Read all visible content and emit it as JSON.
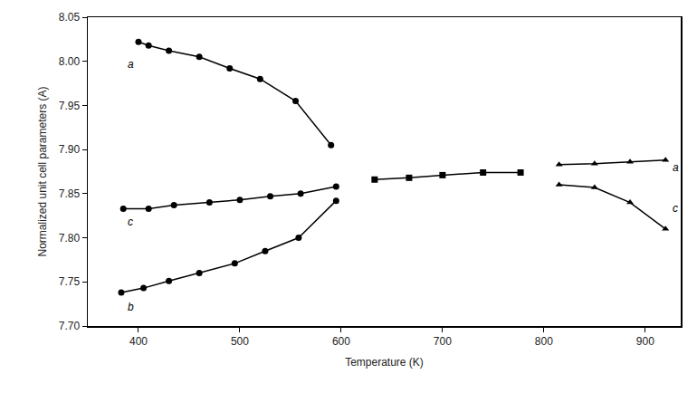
{
  "chart_data": {
    "type": "line",
    "x_label": "Temperature (K)",
    "y_label": "Normalized unit cell parameters (A)",
    "xlim": [
      350,
      935
    ],
    "xticks": [
      400,
      500,
      600,
      700,
      800,
      900
    ],
    "ylim": [
      7.7,
      8.05
    ],
    "yticks": [
      {
        "value": 7.7,
        "label": "7.70"
      },
      7.75,
      {
        "value": 7.8,
        "label": "7.80"
      },
      7.85,
      {
        "value": 7.9,
        "label": "7.90"
      },
      7.95,
      {
        "value": 8.0,
        "label": "8.00"
      },
      8.05
    ],
    "grid": false,
    "line_style": "solid",
    "color": "#000000",
    "series": [
      {
        "marker": "circle",
        "x": [
          400,
          410,
          430,
          460,
          490,
          520,
          555,
          590
        ],
        "values": [
          8.022,
          8.018,
          8.012,
          8.005,
          7.992,
          7.98,
          7.955,
          7.905
        ]
      },
      {
        "marker": "circle",
        "x": [
          385,
          410,
          435,
          470,
          500,
          530,
          560,
          595
        ],
        "values": [
          7.833,
          7.833,
          7.837,
          7.84,
          7.843,
          7.847,
          7.85,
          7.858
        ]
      },
      {
        "marker": "circle",
        "x": [
          383,
          405,
          430,
          460,
          495,
          525,
          558,
          595
        ],
        "values": [
          7.738,
          7.743,
          7.751,
          7.76,
          7.771,
          7.785,
          7.8,
          7.842
        ]
      },
      {
        "marker": "square",
        "x": [
          633,
          667,
          700,
          740,
          777
        ],
        "values": [
          7.866,
          7.868,
          7.871,
          7.874,
          7.874
        ]
      },
      {
        "marker": "triangle",
        "x": [
          815,
          850,
          885,
          920
        ],
        "values": [
          7.883,
          7.884,
          7.886,
          7.888
        ]
      },
      {
        "marker": "triangle",
        "x": [
          815,
          850,
          885,
          920
        ],
        "values": [
          7.86,
          7.857,
          7.84,
          7.81
        ]
      }
    ],
    "annotations": [
      {
        "text": "a",
        "x": 392,
        "y": 7.997
      },
      {
        "text": "c",
        "x": 392,
        "y": 7.818
      },
      {
        "text": "b",
        "x": 392,
        "y": 7.722
      },
      {
        "text": "a",
        "x": 930,
        "y": 7.88
      },
      {
        "text": "c",
        "x": 930,
        "y": 7.833
      }
    ]
  }
}
